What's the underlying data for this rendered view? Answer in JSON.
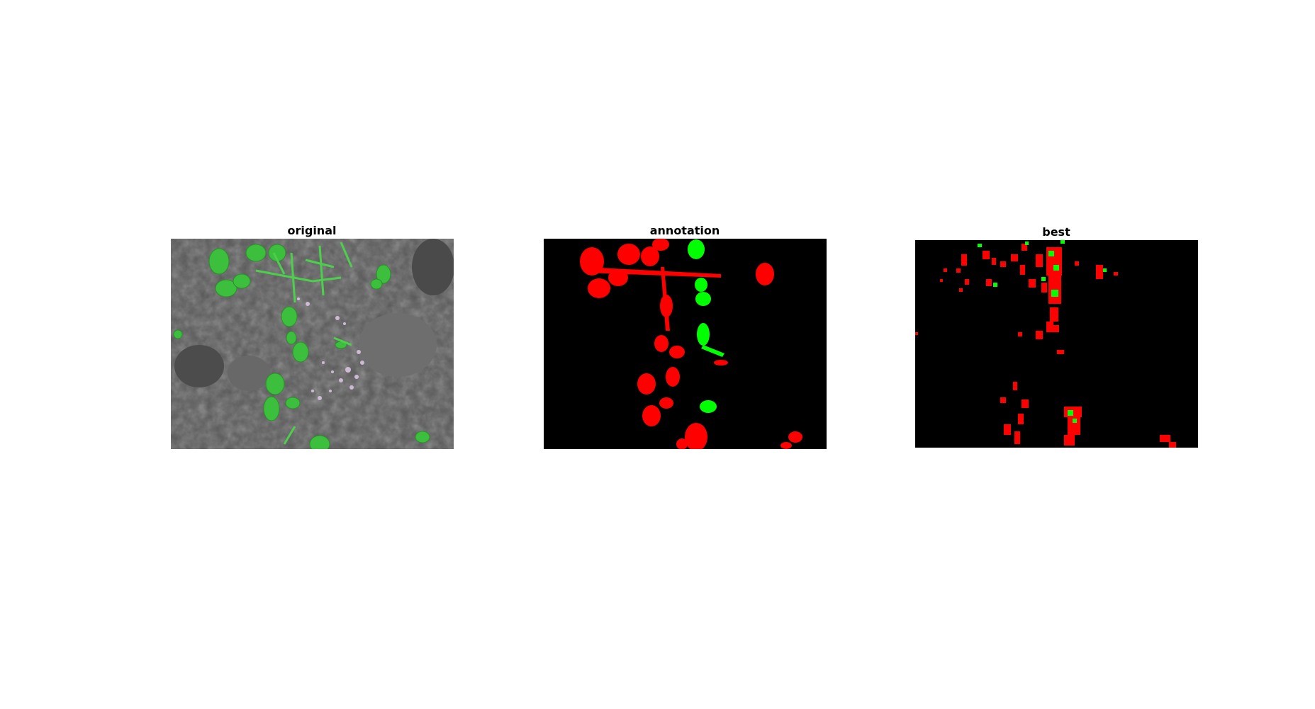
{
  "figure": {
    "panels": [
      {
        "id": "original",
        "title": "original",
        "kind": "photo"
      },
      {
        "id": "annotation",
        "title": "annotation",
        "kind": "label-mask"
      },
      {
        "id": "best",
        "title": "best",
        "kind": "prediction-mask"
      }
    ],
    "colors": {
      "soil": "#5a5a5a",
      "plant_green": "#3cc83c",
      "class_red": "#ff0000",
      "class_green": "#00ff00",
      "mask_background": "#000000",
      "page_background": "#ffffff"
    }
  }
}
